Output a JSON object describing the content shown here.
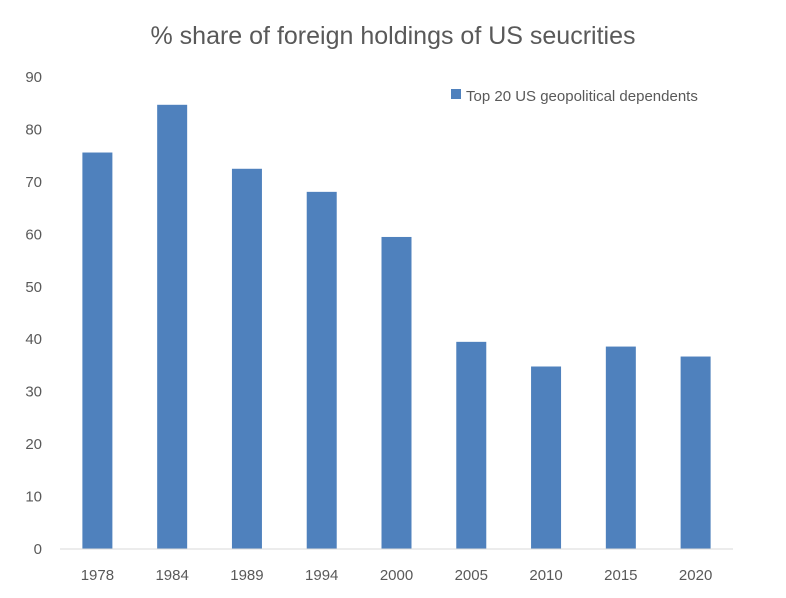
{
  "chart_data": {
    "type": "bar",
    "title": "% share of foreign holdings of US seucrities",
    "xlabel": "",
    "ylabel": "",
    "categories": [
      "1978",
      "1984",
      "1989",
      "1994",
      "2000",
      "2005",
      "2010",
      "2015",
      "2020"
    ],
    "series": [
      {
        "name": "Top 20 US geopolitical dependents",
        "values": [
          75.6,
          84.7,
          72.5,
          68.1,
          59.5,
          39.5,
          34.8,
          38.6,
          36.7
        ],
        "color": "#4f81bd"
      }
    ],
    "ylim": [
      0,
      90
    ],
    "yticks": [
      0,
      10,
      20,
      30,
      40,
      50,
      60,
      70,
      80,
      90
    ],
    "grid": false,
    "legend_position": "top-right",
    "axis_color": "#d9d9d9",
    "text_color": "#595959"
  }
}
